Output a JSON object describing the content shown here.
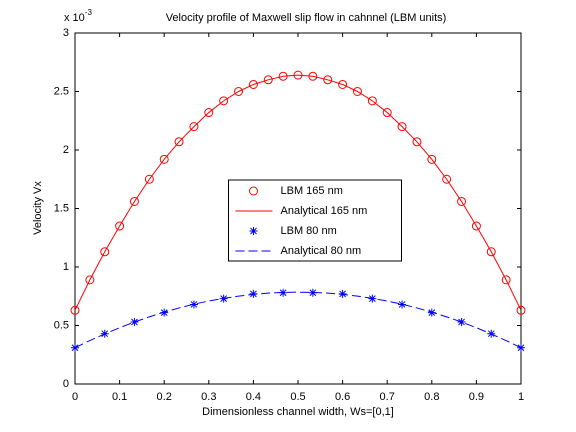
{
  "chart_data": {
    "type": "line",
    "title": "Velocity profile of Maxwell slip flow in cahnnel (LBM units)",
    "axis_multiplier": {
      "base": "x 10",
      "exponent": "-3"
    },
    "xlabel": "Dimensionless channel width, Ws=[0,1]",
    "ylabel": "Velocity Vx",
    "xlim": [
      0,
      1
    ],
    "ylim": [
      0,
      3
    ],
    "xticks": [
      0,
      0.1,
      0.2,
      0.3,
      0.4,
      0.5,
      0.6,
      0.7,
      0.8,
      0.9,
      1
    ],
    "yticks": [
      0,
      0.5,
      1,
      1.5,
      2,
      2.5,
      3
    ],
    "grid": false,
    "legend": "center",
    "series": [
      {
        "name": "LBM 165 nm",
        "color": "#ff0000",
        "marker": "o",
        "linestyle": "none",
        "x": [
          0,
          0.0333,
          0.0667,
          0.1,
          0.1333,
          0.1667,
          0.2,
          0.2333,
          0.2667,
          0.3,
          0.3333,
          0.3667,
          0.4,
          0.4333,
          0.4667,
          0.5,
          0.5333,
          0.5667,
          0.6,
          0.6333,
          0.6667,
          0.7,
          0.7333,
          0.7667,
          0.8,
          0.8333,
          0.8667,
          0.9,
          0.9333,
          0.9667,
          1
        ],
        "values": [
          0.63,
          0.89,
          1.13,
          1.35,
          1.56,
          1.75,
          1.92,
          2.07,
          2.2,
          2.32,
          2.42,
          2.5,
          2.56,
          2.6,
          2.63,
          2.64,
          2.63,
          2.6,
          2.56,
          2.5,
          2.42,
          2.32,
          2.2,
          2.07,
          1.92,
          1.75,
          1.56,
          1.35,
          1.13,
          0.89,
          0.63
        ]
      },
      {
        "name": "Analytical 165 nm",
        "color": "#ff0000",
        "marker": "none",
        "linestyle": "solid",
        "x": [
          0,
          0.0333,
          0.0667,
          0.1,
          0.1333,
          0.1667,
          0.2,
          0.2333,
          0.2667,
          0.3,
          0.3333,
          0.3667,
          0.4,
          0.4333,
          0.4667,
          0.5,
          0.5333,
          0.5667,
          0.6,
          0.6333,
          0.6667,
          0.7,
          0.7333,
          0.7667,
          0.8,
          0.8333,
          0.8667,
          0.9,
          0.9333,
          0.9667,
          1
        ],
        "values": [
          0.63,
          0.89,
          1.13,
          1.35,
          1.56,
          1.75,
          1.92,
          2.07,
          2.2,
          2.32,
          2.42,
          2.5,
          2.56,
          2.6,
          2.63,
          2.64,
          2.63,
          2.6,
          2.56,
          2.5,
          2.42,
          2.32,
          2.2,
          2.07,
          1.92,
          1.75,
          1.56,
          1.35,
          1.13,
          0.89,
          0.63
        ]
      },
      {
        "name": "LBM 80 nm",
        "color": "#0000ff",
        "marker": "*",
        "linestyle": "none",
        "x": [
          0,
          0.0667,
          0.1333,
          0.2,
          0.2667,
          0.3333,
          0.4,
          0.4667,
          0.5333,
          0.6,
          0.6667,
          0.7333,
          0.8,
          0.8667,
          0.9333,
          1
        ],
        "values": [
          0.31,
          0.43,
          0.53,
          0.61,
          0.68,
          0.73,
          0.77,
          0.78,
          0.78,
          0.77,
          0.73,
          0.68,
          0.61,
          0.53,
          0.43,
          0.31
        ]
      },
      {
        "name": "Analytical 80 nm",
        "color": "#0000ff",
        "marker": "none",
        "linestyle": "dashed",
        "x": [
          0,
          0.0333,
          0.0667,
          0.1,
          0.1333,
          0.1667,
          0.2,
          0.2333,
          0.2667,
          0.3,
          0.3333,
          0.3667,
          0.4,
          0.4333,
          0.4667,
          0.5,
          0.5333,
          0.5667,
          0.6,
          0.6333,
          0.6667,
          0.7,
          0.7333,
          0.7667,
          0.8,
          0.8333,
          0.8667,
          0.9,
          0.9333,
          0.9667,
          1
        ],
        "values": [
          0.31,
          0.371,
          0.428,
          0.481,
          0.53,
          0.574,
          0.614,
          0.65,
          0.682,
          0.709,
          0.732,
          0.751,
          0.766,
          0.777,
          0.783,
          0.785,
          0.783,
          0.777,
          0.766,
          0.751,
          0.732,
          0.709,
          0.682,
          0.65,
          0.614,
          0.574,
          0.53,
          0.481,
          0.428,
          0.371,
          0.31
        ]
      }
    ]
  }
}
